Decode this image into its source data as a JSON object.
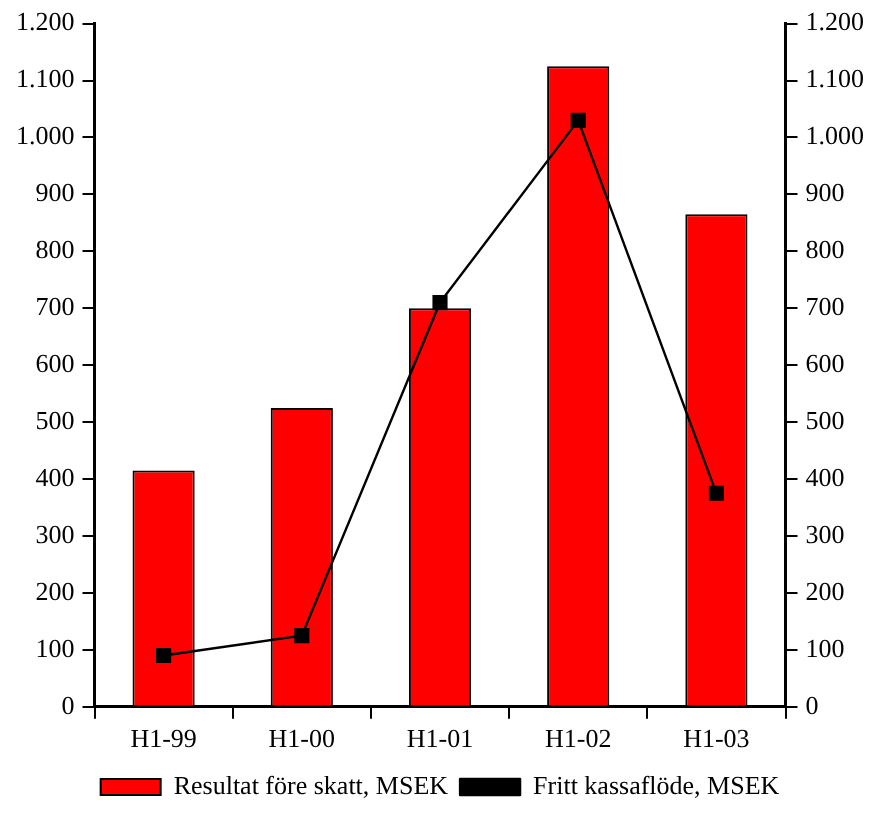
{
  "chart_data": {
    "type": "bar",
    "categories": [
      "H1-99",
      "H1-00",
      "H1-01",
      "H1-02",
      "H1-03"
    ],
    "series": [
      {
        "name": "Resultat före skatt, MSEK",
        "color": "#ff0000",
        "values": [
          415,
          525,
          700,
          1125,
          865
        ]
      },
      {
        "name": "Fritt kassaflöde, MSEK",
        "type": "line",
        "color": "#000000",
        "values": [
          90,
          125,
          710,
          1030,
          375
        ],
        "marker": "square"
      }
    ],
    "ylim": [
      0,
      1200
    ],
    "yticks": [
      0,
      100,
      200,
      300,
      400,
      500,
      600,
      700,
      800,
      900,
      {
        "value": 1000,
        "label": "1.000"
      },
      {
        "value": 1100,
        "label": "1.100"
      },
      {
        "value": 1200,
        "label": "1.200"
      }
    ],
    "y2lim": [
      0,
      1200
    ],
    "y2ticks": [
      0,
      100,
      200,
      300,
      400,
      500,
      600,
      700,
      800,
      900,
      {
        "value": 1000,
        "label": "1.000"
      },
      {
        "value": 1100,
        "label": "1.100"
      },
      {
        "value": 1200,
        "label": "1.200"
      }
    ],
    "grid": false,
    "legend": "bottom",
    "line_style": "solid"
  }
}
